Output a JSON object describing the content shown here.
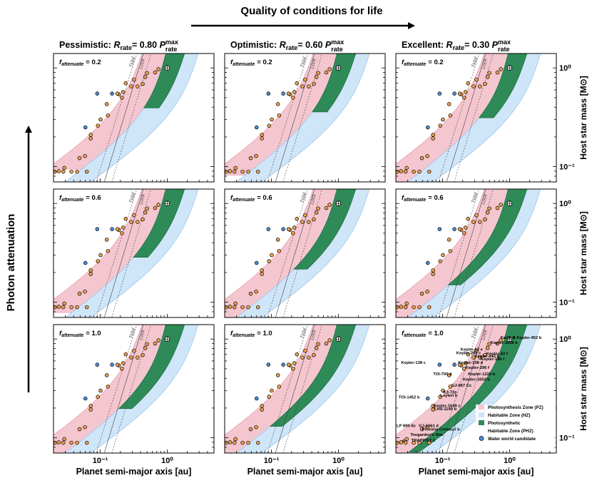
{
  "figure": {
    "top_label": "Quality of conditions for life",
    "left_label": "Photon attenuation",
    "x_axis_label": "Planet semi-major axis [au]",
    "y_axis_label": "Host star mass [M⊙]",
    "tidal_label_1": "Tidal",
    "tidal_label_2": "Lock",
    "x_ticks": [
      {
        "v": 0.1,
        "label": "10⁻¹"
      },
      {
        "v": 1,
        "label": "10⁰"
      }
    ],
    "y_ticks": [
      {
        "v": 1.0,
        "label": "10⁰"
      },
      {
        "v": 0.1,
        "label": "10⁻¹"
      }
    ],
    "xlim": [
      0.02,
      5
    ],
    "ylim": [
      0.07,
      1.4
    ],
    "x_scale": "log",
    "y_scale": "log",
    "colors": {
      "pz": "#f4c6cf",
      "pz_edge": "#e8a1ae",
      "hz": "#cfe5f8",
      "hz_edge": "#9cc7ee",
      "phz": "#2e8b57",
      "planet": "#f0a050",
      "water": "#4a8fd8"
    }
  },
  "columns": [
    {
      "title_prefix": "Pessimistic: ",
      "title_value": "0.80",
      "rrate": 0.8
    },
    {
      "title_prefix": "Optimistic: ",
      "title_value": "0.60",
      "rrate": 0.6
    },
    {
      "title_prefix": "Excellent: ",
      "title_value": "0.30",
      "rrate": 0.3
    }
  ],
  "rows": [
    {
      "label": "f",
      "sub": "attenuate",
      "value": "= 0.2",
      "fatt": 0.2
    },
    {
      "label": "f",
      "sub": "attenuate",
      "value": "= 0.6",
      "fatt": 0.6
    },
    {
      "label": "f",
      "sub": "attenuate",
      "value": "= 1.0",
      "fatt": 1.0
    }
  ],
  "legend": [
    {
      "key": "pz",
      "label": "Photosynthesis Zone (PZ)"
    },
    {
      "key": "hz",
      "label": "Habitable Zone (HZ)"
    },
    {
      "key": "phz",
      "label": "Photosynthetic"
    },
    {
      "key": "phz2",
      "label": "Habitable  Zone (PHZ)"
    },
    {
      "key": "water",
      "label": "Water world candidate"
    }
  ],
  "chart_data": {
    "type": "scatter",
    "planets": [
      {
        "a": 0.011,
        "m": 0.089,
        "name": "TRAPPIST-1",
        "water": false
      },
      {
        "a": 0.015,
        "m": 0.089,
        "name": "",
        "water": false
      },
      {
        "a": 0.021,
        "m": 0.089,
        "name": "",
        "water": false
      },
      {
        "a": 0.028,
        "m": 0.089,
        "name": "",
        "water": false
      },
      {
        "a": 0.037,
        "m": 0.089,
        "name": "",
        "water": false
      },
      {
        "a": 0.045,
        "m": 0.089,
        "name": "",
        "water": false
      },
      {
        "a": 0.063,
        "m": 0.089,
        "name": "",
        "water": false
      },
      {
        "a": 0.024,
        "m": 0.09,
        "name": "LP 890-9c",
        "water": false
      },
      {
        "a": 0.029,
        "m": 0.097,
        "name": "Teegarden's Star",
        "water": false
      },
      {
        "a": 0.049,
        "m": 0.122,
        "name": "Proxima Centauri b",
        "water": false
      },
      {
        "a": 0.059,
        "m": 0.128,
        "name": "GJ-1061 d",
        "water": false
      },
      {
        "a": 0.072,
        "m": 0.193,
        "name": "LHS-1140 b",
        "water": false
      },
      {
        "a": 0.072,
        "m": 0.21,
        "name": "Kepler-1649 c",
        "water": false
      },
      {
        "a": 0.092,
        "m": 0.26,
        "name": "Luyten b",
        "water": false
      },
      {
        "a": 0.101,
        "m": 0.3,
        "name": "K2-72e",
        "water": false
      },
      {
        "a": 0.06,
        "m": 0.25,
        "name": "TOI-1452 b",
        "water": true
      },
      {
        "a": 0.13,
        "m": 0.33,
        "name": "GJ-667 Cc",
        "water": false
      },
      {
        "a": 0.125,
        "m": 0.43,
        "name": "TOI-700 d",
        "water": false
      },
      {
        "a": 0.19,
        "m": 0.54,
        "name": "Kepler-1652 b",
        "water": false
      },
      {
        "a": 0.18,
        "m": 0.55,
        "name": "Kepler-1229 b",
        "water": false
      },
      {
        "a": 0.21,
        "m": 0.5,
        "name": "Kepler-296 f",
        "water": false
      },
      {
        "a": 0.22,
        "m": 0.57,
        "name": "Kepler-1229 b",
        "water": false
      },
      {
        "a": 0.09,
        "m": 0.55,
        "name": "Kepler-138 d",
        "water": true
      },
      {
        "a": 0.15,
        "m": 0.55,
        "name": "Kepler-138 e",
        "water": true
      },
      {
        "a": 0.29,
        "m": 0.65,
        "name": "Kepler-442 b",
        "water": false
      },
      {
        "a": 0.24,
        "m": 0.7,
        "name": "Kepler-283 c",
        "water": false
      },
      {
        "a": 0.36,
        "m": 0.65,
        "name": "Kepler-186 f",
        "water": false
      },
      {
        "a": 0.32,
        "m": 0.76,
        "name": "Kepler-62 e",
        "water": false
      },
      {
        "a": 0.43,
        "m": 0.69,
        "name": "Kepler-62 f",
        "water": false
      },
      {
        "a": 0.47,
        "m": 0.81,
        "name": "Kepler-1544 b",
        "water": false
      },
      {
        "a": 0.5,
        "m": 0.89,
        "name": "Kepler-1638 b",
        "water": false
      },
      {
        "a": 0.66,
        "m": 0.9,
        "name": "",
        "water": false
      },
      {
        "a": 0.74,
        "m": 0.97,
        "name": "Kepler-452 b",
        "water": false
      },
      {
        "a": 1.0,
        "m": 1.0,
        "name": "Earth",
        "water": false,
        "earth": true
      }
    ],
    "annotations": [
      {
        "text": "Earth ⊕ Kepler-452 b",
        "a": 0.73,
        "m": 1.0
      },
      {
        "text": "Kepler-1638 b",
        "a": 0.52,
        "m": 0.89
      },
      {
        "text": "Kepler-62 f",
        "a": 0.45,
        "m": 0.69
      },
      {
        "text": "Kepler-62 e",
        "a": 0.185,
        "m": 0.76
      },
      {
        "text": "Kepler-283 c",
        "a": 0.16,
        "m": 0.7
      },
      {
        "text": "Kepler-442 b",
        "a": 0.3,
        "m": 0.65
      },
      {
        "text": "Kepler-186 f",
        "a": 0.37,
        "m": 0.61
      },
      {
        "text": "Kepler-138 c",
        "a": 0.024,
        "m": 0.56
      },
      {
        "text": "Kepler-138 d",
        "a": 0.17,
        "m": 0.56
      },
      {
        "text": "Kepler-296 f",
        "a": 0.22,
        "m": 0.5
      },
      {
        "text": "TOI-700 d",
        "a": 0.072,
        "m": 0.43
      },
      {
        "text": "Kepler-1229 b",
        "a": 0.24,
        "m": 0.43
      },
      {
        "text": "Kepler-1652 b",
        "a": 0.2,
        "m": 0.38
      },
      {
        "text": "GJ-667 Cc",
        "a": 0.135,
        "m": 0.33
      },
      {
        "text": "K2-72e",
        "a": 0.102,
        "m": 0.28
      },
      {
        "text": "Luyten b",
        "a": 0.092,
        "m": 0.26
      },
      {
        "text": "TOI-1452 b",
        "a": 0.022,
        "m": 0.25
      },
      {
        "text": "Kepler-1649 c",
        "a": 0.073,
        "m": 0.205
      },
      {
        "text": "LHS-1140 b",
        "a": 0.075,
        "m": 0.19
      },
      {
        "text": "GJ-1061 d",
        "a": 0.044,
        "m": 0.129
      },
      {
        "text": "LP 890-9c",
        "a": 0.0205,
        "m": 0.128
      },
      {
        "text": "Proxima Centauri b",
        "a": 0.049,
        "m": 0.118
      },
      {
        "text": "Teegarden's Star",
        "a": 0.033,
        "m": 0.104
      },
      {
        "text": "TRAPPIST-1",
        "a": 0.034,
        "m": 0.091
      },
      {
        "text": "g",
        "a": 0.025,
        "m": 0.091
      }
    ]
  }
}
